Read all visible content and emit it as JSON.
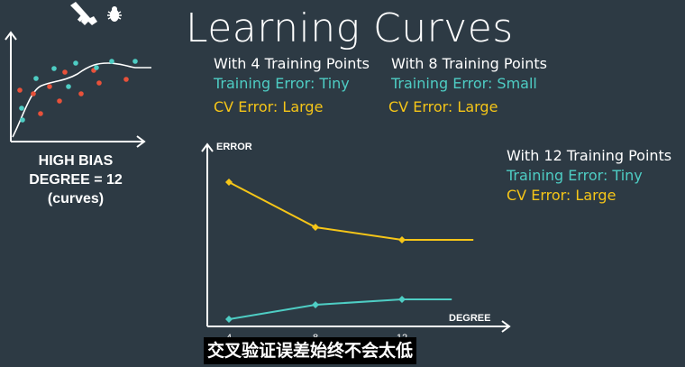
{
  "title": "Learning Curves",
  "notes": [
    {
      "heading": "With 4 Training Points",
      "train": "Training Error: Tiny",
      "cv": "CV Error: Large"
    },
    {
      "heading": "With 8 Training Points",
      "train": "Training Error: Small",
      "cv": "CV Error: Large"
    },
    {
      "heading": "With 12 Training Points",
      "train": "Training Error: Tiny",
      "cv": "CV Error: Large"
    }
  ],
  "bias_caption": {
    "line1": "HIGH BIAS",
    "line2": "DEGREE = 12",
    "line3": "(curves)"
  },
  "subtitle": "交叉验证误差始终不会太低",
  "colors": {
    "background": "#2d3a44",
    "train": "#4ecdc4",
    "cv": "#f5c518",
    "axis": "#ffffff",
    "points_a": "#4ecdc4",
    "points_b": "#e8513a"
  },
  "icons": [
    "gun-icon",
    "bug-icon"
  ],
  "chart_data": {
    "type": "line",
    "xlabel": "DEGREE",
    "ylabel": "ERROR",
    "x_ticks": [
      "4",
      "8",
      "12"
    ],
    "xlim": [
      3,
      17
    ],
    "ylim": [
      0,
      10
    ],
    "series": [
      {
        "key": "cv",
        "x": [
          4,
          8,
          12,
          15.3
        ],
        "y": [
          8.0,
          5.5,
          4.8,
          4.8
        ],
        "markers": 3
      },
      {
        "key": "train",
        "x": [
          4,
          8,
          12,
          14.3
        ],
        "y": [
          0.4,
          1.2,
          1.5,
          1.5
        ],
        "markers": 3
      }
    ]
  }
}
